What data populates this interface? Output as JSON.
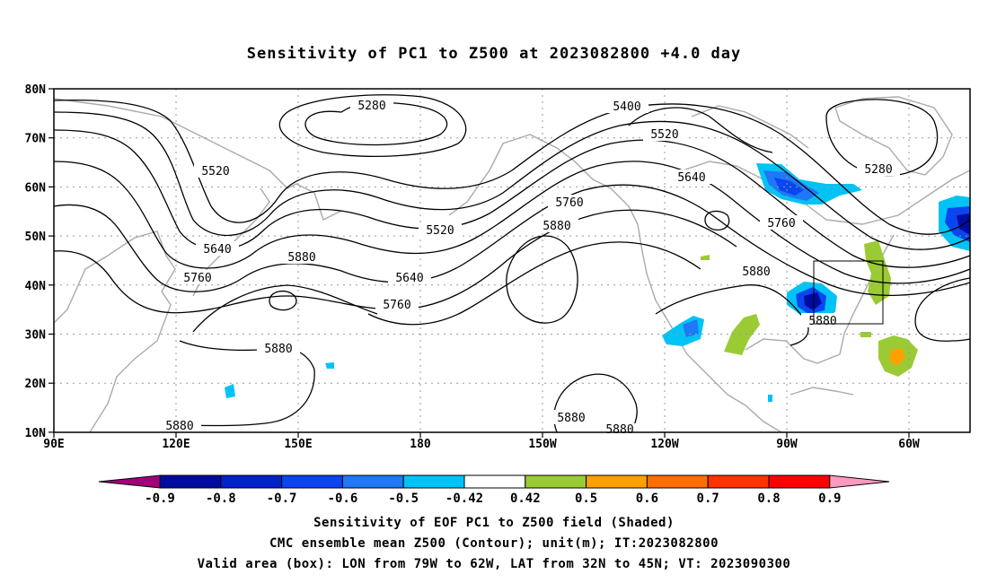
{
  "title": "Sensitivity of PC1 to Z500 at 2023082800 +4.0 day",
  "axes": {
    "lat_ticks": [
      "80N",
      "70N",
      "60N",
      "50N",
      "40N",
      "30N",
      "20N",
      "10N"
    ],
    "lon_ticks": [
      "90E",
      "120E",
      "150E",
      "180",
      "150W",
      "120W",
      "90W",
      "60W"
    ]
  },
  "contour_labels": [
    "5280",
    "5400",
    "5520",
    "5640",
    "5760",
    "5880"
  ],
  "colorbar": {
    "labels": [
      "-0.9",
      "-0.8",
      "-0.7",
      "-0.6",
      "-0.5",
      "-0.42",
      "0.42",
      "0.5",
      "0.6",
      "0.7",
      "0.8",
      "0.9"
    ],
    "colors": [
      "#a0007a",
      "#000ba0",
      "#0022cc",
      "#0a45f0",
      "#1f78f5",
      "#00c3f5",
      "#ffffff",
      "#9acb34",
      "#ffa000",
      "#ff6e00",
      "#ff3200",
      "#ff0000",
      "#ff99c0"
    ]
  },
  "shade_colors": {
    "neg_strong": "#000ba0",
    "neg_mid": "#0a45f0",
    "neg_light": "#1f78f5",
    "neg_weak": "#00c3f5",
    "pos_weak": "#9acb34",
    "pos_mid": "#ffa000"
  },
  "valid_box": {
    "lon_from_west": 79,
    "lon_to_west": 62,
    "lat_from": 32,
    "lat_to": 45
  },
  "captions": {
    "line1": "Sensitivity of EOF PC1 to Z500 field (Shaded)",
    "line2": "CMC ensemble mean Z500 (Contour); unit(m); IT:2023082800",
    "line3": "Valid area (box): LON from 79W to 62W, LAT from 32N to 45N; VT: 2023090300"
  }
}
